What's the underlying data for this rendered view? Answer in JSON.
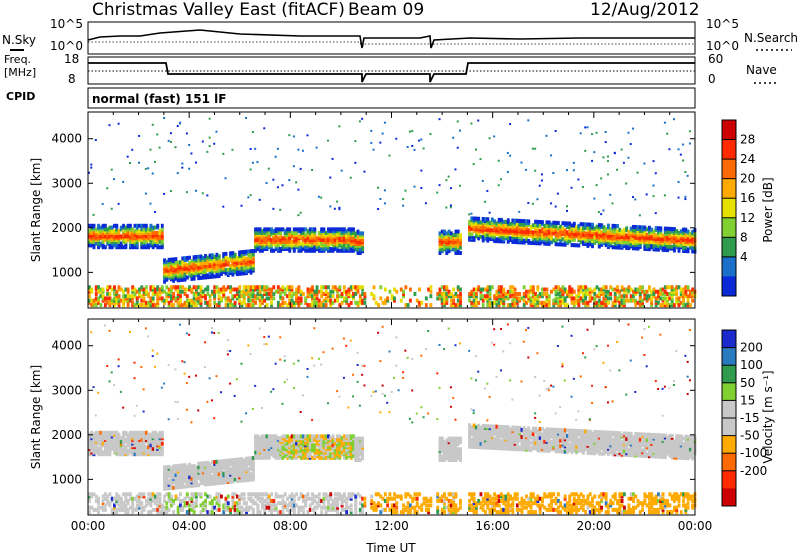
{
  "header": {
    "title": "Christmas Valley East (fitACF)",
    "beam": "Beam 09",
    "date": "12/Aug/2012"
  },
  "nsky_panel": {
    "left_label": "N.Sky",
    "left_ticks": [
      "10^5",
      "10^0"
    ],
    "right_ticks": [
      "10^5",
      "10^0"
    ],
    "right_label": "N.Search"
  },
  "freq_panel": {
    "left_label_1": "Freq.",
    "left_label_2": "[MHz]",
    "left_ticks": [
      "18",
      "8"
    ],
    "right_ticks": [
      "60",
      "0"
    ],
    "right_label": "Nave"
  },
  "cpid": {
    "label": "CPID",
    "mode": "normal (fast) 151 lF"
  },
  "chart_data": [
    {
      "type": "heatmap",
      "name": "power",
      "ylabel": "Slant Range [km]",
      "ylim": [
        200,
        4600
      ],
      "yticks": [
        1000,
        2000,
        3000,
        4000
      ],
      "colorbar": {
        "label": "Power [dB]",
        "ticks": [
          "28",
          "24",
          "20",
          "16",
          "12",
          "8",
          "4"
        ],
        "colors": [
          "#cc0000",
          "#ff2a00",
          "#ff6a00",
          "#ffaa00",
          "#e6e000",
          "#7fd030",
          "#2e9c4c",
          "#1a6fc8",
          "#0a2ad8"
        ]
      },
      "bands": [
        {
          "t0": 0,
          "t1": 2.9,
          "r0": 1750,
          "r1": 1900,
          "level": "high"
        },
        {
          "t0": 2.9,
          "t1": 6.5,
          "r0": 900,
          "r1": 1250,
          "level": "high"
        },
        {
          "t0": 6.5,
          "t1": 10.5,
          "r0": 1600,
          "r1": 2000,
          "level": "mid"
        },
        {
          "t0": 15,
          "t1": 24,
          "r0": 1600,
          "r1": 2300,
          "level": "mid"
        }
      ]
    },
    {
      "type": "heatmap",
      "name": "velocity",
      "ylabel": "Slant Range [km]",
      "xlabel": "Time UT",
      "ylim": [
        200,
        4600
      ],
      "yticks": [
        1000,
        2000,
        3000,
        4000
      ],
      "xticks": [
        "00:00",
        "04:00",
        "08:00",
        "12:00",
        "16:00",
        "20:00",
        "00:00"
      ],
      "colorbar": {
        "label": "Velocity [m s⁻¹]",
        "ticks": [
          "200",
          "100",
          "50",
          "15",
          "-15",
          "-50",
          "-100",
          "-200"
        ],
        "colors": [
          "#1a2acc",
          "#2a7ac0",
          "#2e9c4c",
          "#7fd030",
          "#c8c8c8",
          "#c8c8c8",
          "#ffaa00",
          "#ff6a00",
          "#ff2a00",
          "#cc0000"
        ]
      }
    }
  ]
}
